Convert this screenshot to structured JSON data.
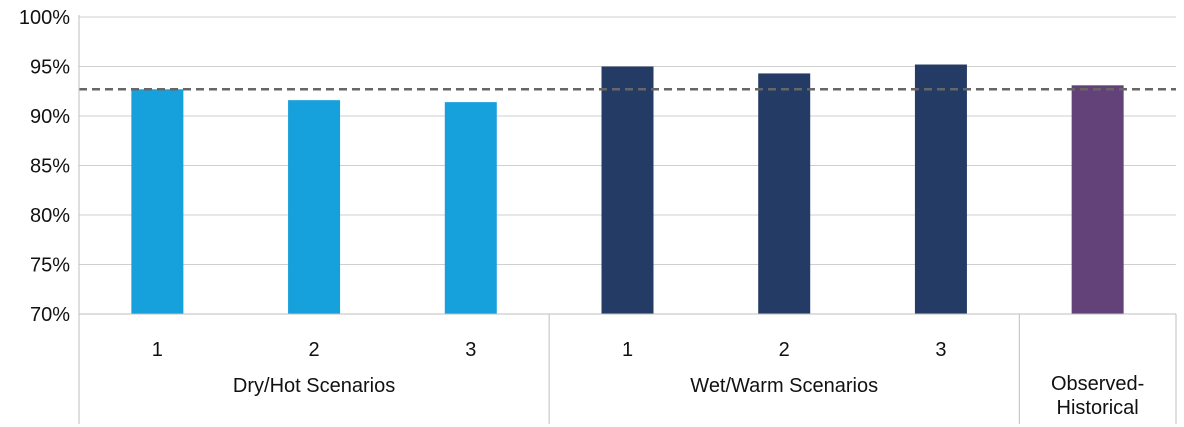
{
  "chart_data": {
    "type": "bar",
    "title": "",
    "xlabel": "",
    "ylabel": "",
    "ylim": [
      0.7,
      1.0
    ],
    "yticks": [
      "70%",
      "75%",
      "80%",
      "85%",
      "90%",
      "95%",
      "100%"
    ],
    "grid": "horizontal",
    "reference_line": {
      "value": 0.927,
      "style": "dashed",
      "color": "#666666"
    },
    "groups": [
      {
        "label": "Dry/Hot Scenarios",
        "color": "#16a0dc",
        "bars": [
          {
            "label": "1",
            "value": 0.927
          },
          {
            "label": "2",
            "value": 0.916
          },
          {
            "label": "3",
            "value": 0.914
          }
        ]
      },
      {
        "label": "Wet/Warm Scenarios",
        "color": "#243b66",
        "bars": [
          {
            "label": "1",
            "value": 0.95
          },
          {
            "label": "2",
            "value": 0.943
          },
          {
            "label": "3",
            "value": 0.952
          }
        ]
      },
      {
        "label": "Observed-Historical",
        "label_lines": [
          "Observed-",
          "Historical"
        ],
        "color": "#63427a",
        "bars": [
          {
            "label": "",
            "value": 0.931
          }
        ]
      }
    ]
  }
}
